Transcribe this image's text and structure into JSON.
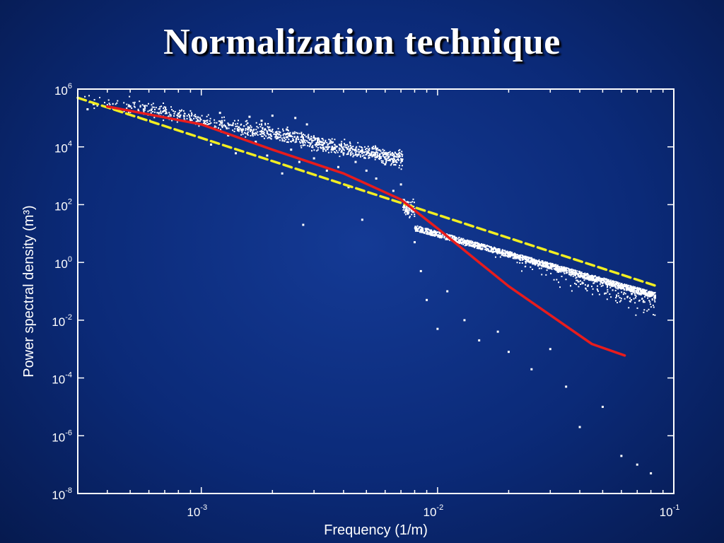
{
  "slide": {
    "title": "Normalization technique"
  },
  "chart_data": {
    "type": "scatter",
    "xlabel": "Frequency (1/m)",
    "ylabel": "Power spectral density (m³)",
    "xscale": "log",
    "yscale": "log",
    "xlim": [
      0.0003,
      0.1
    ],
    "ylim": [
      1e-08,
      1000000.0
    ],
    "xticks": [
      {
        "value": 0.001,
        "base": "10",
        "exp": "-3"
      },
      {
        "value": 0.01,
        "base": "10",
        "exp": "-2"
      },
      {
        "value": 0.1,
        "base": "10",
        "exp": "-1"
      }
    ],
    "yticks": [
      {
        "value": 1000000.0,
        "base": "10",
        "exp": "6"
      },
      {
        "value": 10000.0,
        "base": "10",
        "exp": "4"
      },
      {
        "value": 100.0,
        "base": "10",
        "exp": "2"
      },
      {
        "value": 1,
        "base": "10",
        "exp": "0"
      },
      {
        "value": 0.01,
        "base": "10",
        "exp": "-2"
      },
      {
        "value": 0.0001,
        "base": "10",
        "exp": "-4"
      },
      {
        "value": 1e-06,
        "base": "10",
        "exp": "-6"
      },
      {
        "value": 1e-08,
        "base": "10",
        "exp": "-8"
      }
    ],
    "grid": false,
    "legend": "none",
    "series": [
      {
        "type": "scatter",
        "color": "#ffffff",
        "points": [
          [
            0.00033,
            200000
          ],
          [
            0.00035,
            300000
          ],
          [
            0.00045,
            200000
          ],
          [
            0.0005,
            250000
          ],
          [
            0.0007,
            180000
          ],
          [
            0.0008,
            140000
          ],
          [
            0.0009,
            90000
          ],
          [
            0.001,
            60000
          ],
          [
            0.0011,
            12000
          ],
          [
            0.0012,
            150000
          ],
          [
            0.0013,
            25000
          ],
          [
            0.0014,
            6000
          ],
          [
            0.0015,
            40000
          ],
          [
            0.0016,
            110000
          ],
          [
            0.0017,
            15000
          ],
          [
            0.0018,
            80000
          ],
          [
            0.0019,
            5000
          ],
          [
            0.002,
            120000
          ],
          [
            0.0021,
            20000
          ],
          [
            0.0022,
            1200
          ],
          [
            0.0023,
            40000
          ],
          [
            0.0024,
            8000
          ],
          [
            0.0025,
            100000
          ],
          [
            0.0026,
            3000
          ],
          [
            0.0027,
            20
          ],
          [
            0.0028,
            60000
          ],
          [
            0.003,
            4000
          ],
          [
            0.0032,
            15000
          ],
          [
            0.0034,
            1500
          ],
          [
            0.0036,
            8000
          ],
          [
            0.0038,
            2000
          ],
          [
            0.004,
            6000
          ],
          [
            0.0042,
            400
          ],
          [
            0.0045,
            3000
          ],
          [
            0.0048,
            30
          ],
          [
            0.005,
            1500
          ],
          [
            0.0055,
            800
          ],
          [
            0.006,
            2500
          ],
          [
            0.0065,
            300
          ],
          [
            0.007,
            500
          ],
          [
            0.0075,
            50
          ],
          [
            0.008,
            5
          ],
          [
            0.0085,
            0.5
          ],
          [
            0.009,
            0.05
          ],
          [
            0.01,
            0.005
          ],
          [
            0.011,
            0.1
          ],
          [
            0.013,
            0.01
          ],
          [
            0.015,
            0.002
          ],
          [
            0.018,
            0.004
          ],
          [
            0.02,
            0.0008
          ],
          [
            0.025,
            0.0002
          ],
          [
            0.03,
            0.001
          ],
          [
            0.035,
            5e-05
          ],
          [
            0.04,
            2e-06
          ],
          [
            0.05,
            1e-05
          ],
          [
            0.06,
            2e-07
          ],
          [
            0.07,
            1e-07
          ],
          [
            0.08,
            5e-08
          ]
        ]
      },
      {
        "type": "line",
        "style": "dashed",
        "color": "#f2ee21",
        "points": [
          [
            0.0003,
            500000
          ],
          [
            0.085,
            0.15
          ]
        ]
      },
      {
        "type": "line",
        "style": "solid",
        "color": "#e81c1c",
        "points": [
          [
            0.0004,
            250000
          ],
          [
            0.001,
            60000
          ],
          [
            0.002,
            8000
          ],
          [
            0.004,
            1200
          ],
          [
            0.007,
            150
          ],
          [
            0.01,
            15
          ],
          [
            0.015,
            1
          ],
          [
            0.02,
            0.15
          ],
          [
            0.03,
            0.015
          ],
          [
            0.045,
            0.0015
          ],
          [
            0.062,
            0.0006
          ]
        ]
      }
    ]
  }
}
